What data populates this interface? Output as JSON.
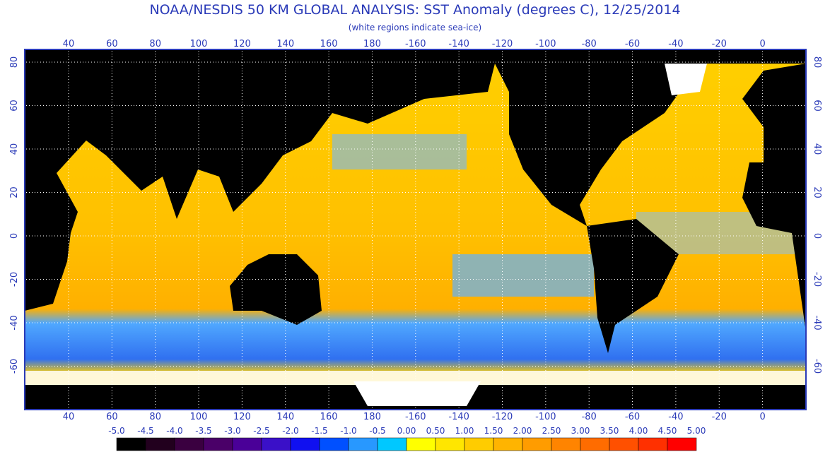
{
  "header": {
    "title": "NOAA/NESDIS 50 KM GLOBAL ANALYSIS: SST Anomaly (degrees C), 12/25/2014",
    "subtitle": "(white regions indicate sea-ice)"
  },
  "map": {
    "longitude_labels": [
      "40",
      "60",
      "80",
      "100",
      "120",
      "140",
      "160",
      "180",
      "-160",
      "-140",
      "-120",
      "-100",
      "-80",
      "-60",
      "-40",
      "-20",
      "0"
    ],
    "latitude_labels": [
      "80",
      "60",
      "40",
      "20",
      "0",
      "-20",
      "-40",
      "-60"
    ]
  },
  "colorbar": {
    "labels": [
      "-5.0",
      "-4.5",
      "-4.0",
      "-3.5",
      "-3.0",
      "-2.5",
      "-2.0",
      "-1.5",
      "-1.0",
      "-0.5",
      "0.00",
      "0.50",
      "1.00",
      "1.50",
      "2.00",
      "2.50",
      "3.00",
      "3.50",
      "4.00",
      "4.50",
      "5.00"
    ],
    "colors": [
      "#000000",
      "#22001e",
      "#3a0040",
      "#4a0068",
      "#4a0098",
      "#3a10c8",
      "#1010f0",
      "#0050ff",
      "#2898ff",
      "#00c8ff",
      "#ffff00",
      "#ffe600",
      "#ffcc00",
      "#ffb400",
      "#ff9c00",
      "#ff8400",
      "#ff6c00",
      "#ff5000",
      "#ff3000",
      "#ff0000"
    ]
  }
}
